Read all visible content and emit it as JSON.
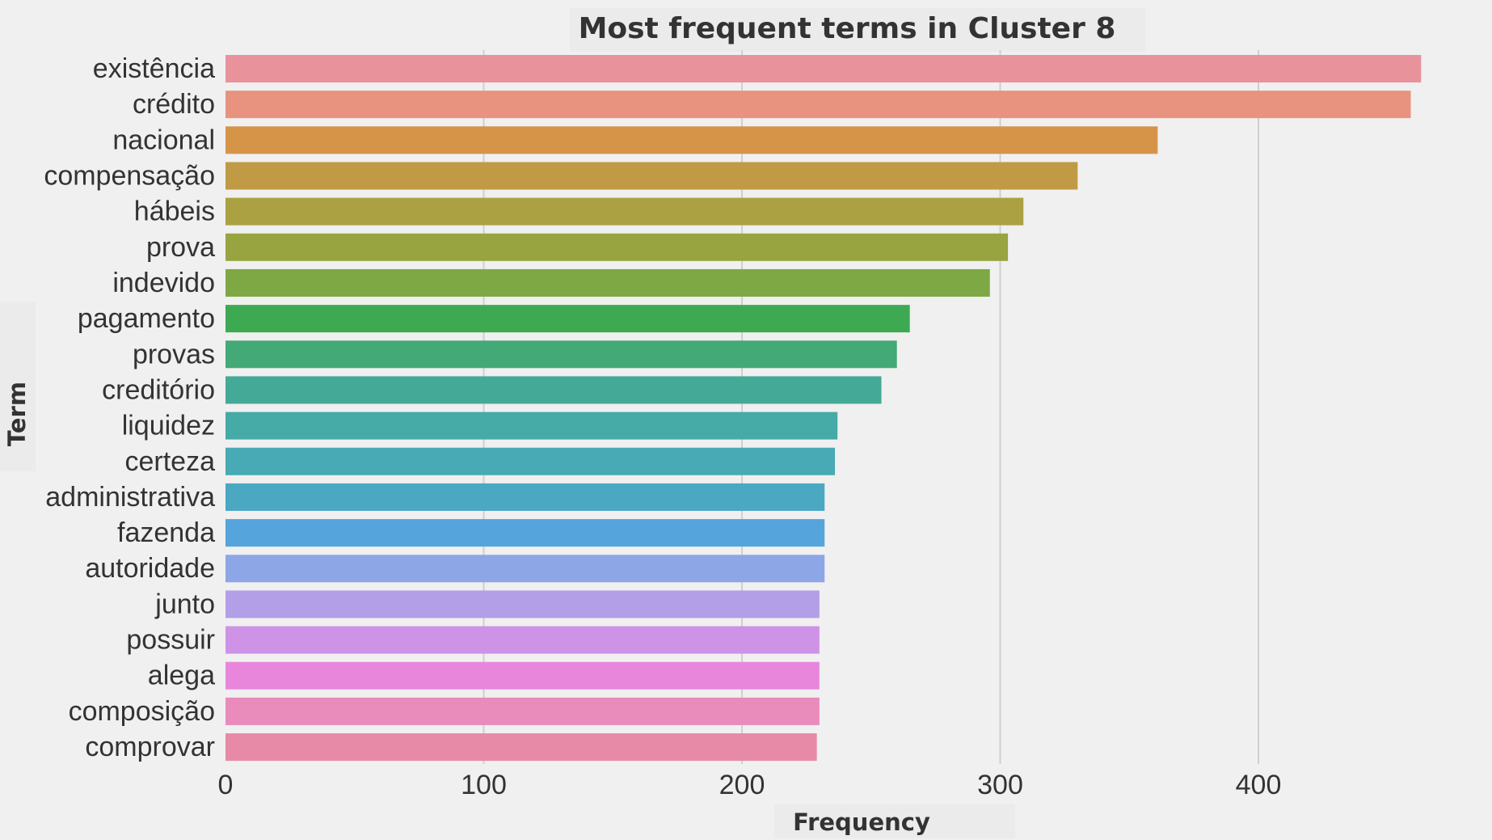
{
  "chart_data": {
    "type": "bar",
    "orientation": "horizontal",
    "title": "Most frequent terms in Cluster 8",
    "xlabel": "Frequency",
    "ylabel": "Term",
    "xlim": [
      0,
      460
    ],
    "xticks": [
      0,
      100,
      200,
      300,
      400
    ],
    "grid": "vertical",
    "categories": [
      "existência",
      "crédito",
      "nacional",
      "compensação",
      "hábeis",
      "prova",
      "indevido",
      "pagamento",
      "provas",
      "creditório",
      "liquidez",
      "certeza",
      "administrativa",
      "fazenda",
      "autoridade",
      "junto",
      "possuir",
      "alega",
      "composição",
      "comprovar"
    ],
    "values": [
      463,
      459,
      361,
      330,
      309,
      303,
      296,
      265,
      260,
      254,
      237,
      236,
      232,
      232,
      232,
      230,
      230,
      230,
      230,
      229
    ],
    "colors": [
      "#e8929c",
      "#e8937f",
      "#d69448",
      "#c09a44",
      "#aca142",
      "#97a43f",
      "#7da844",
      "#3daa52",
      "#43a977",
      "#44a996",
      "#46aaa6",
      "#48aab4",
      "#4aa8c3",
      "#55a4dc",
      "#8da7e6",
      "#b39ee8",
      "#ce92e6",
      "#e886dc",
      "#e98bbb",
      "#e78aa7"
    ]
  }
}
